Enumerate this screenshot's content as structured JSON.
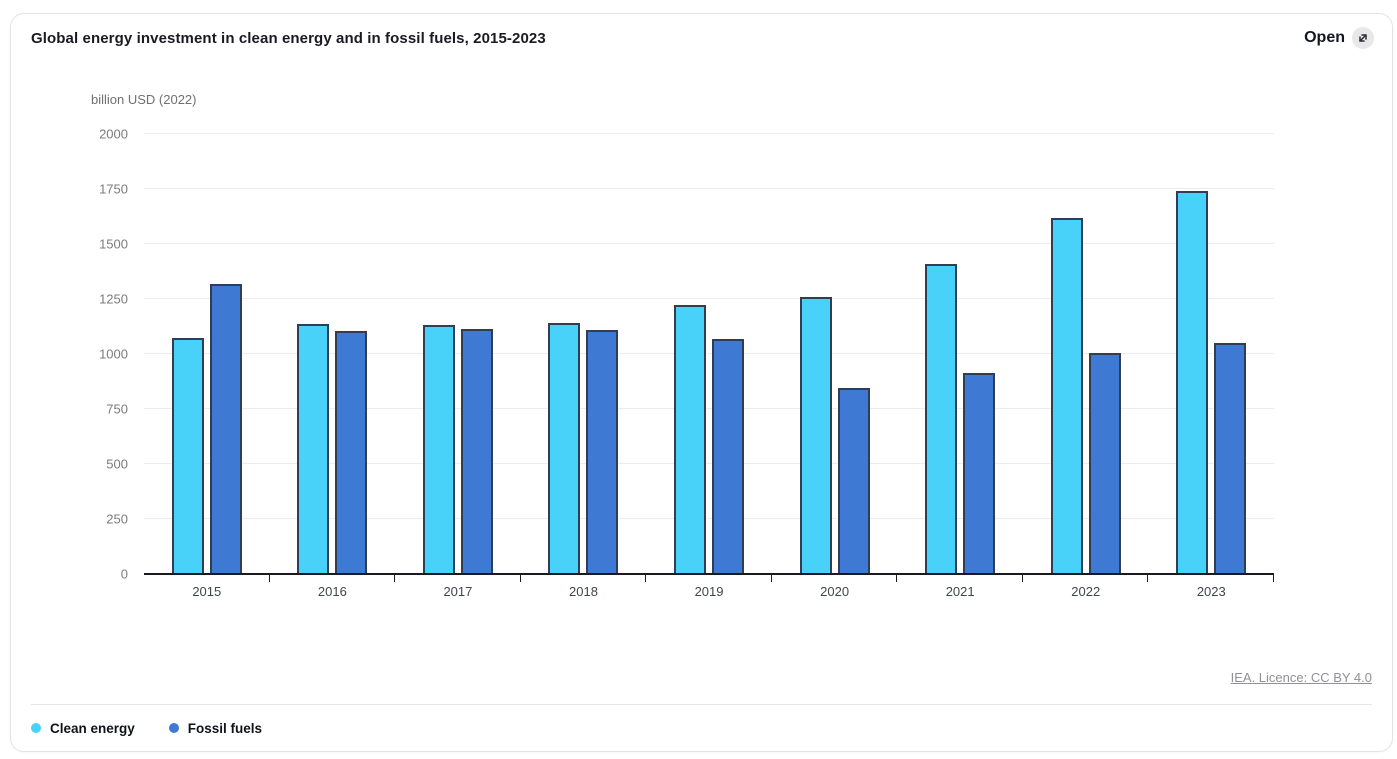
{
  "card": {
    "title": "Global energy investment in clean energy and in fossil fuels, 2015-2023",
    "open_button": {
      "label": "Open",
      "icon": "expand-diagonal-arrow-icon"
    },
    "source_link": "IEA. Licence: CC BY 4.0"
  },
  "chart_data": {
    "type": "bar",
    "title": "Global energy investment in clean energy and in fossil fuels, 2015-2023",
    "unit_label": "billion USD (2022)",
    "categories": [
      "2015",
      "2016",
      "2017",
      "2018",
      "2019",
      "2020",
      "2021",
      "2022",
      "2023"
    ],
    "series": [
      {
        "name": "Clean energy",
        "color": "#48d1f9",
        "values": [
          1075,
          1135,
          1130,
          1140,
          1225,
          1260,
          1410,
          1620,
          1740
        ]
      },
      {
        "name": "Fossil fuels",
        "color": "#3e79d4",
        "values": [
          1320,
          1105,
          1115,
          1110,
          1070,
          845,
          915,
          1005,
          1050
        ]
      }
    ],
    "xlabel": "",
    "ylabel": "billion USD (2022)",
    "ylim": [
      0,
      2000
    ],
    "ytick_step": 250,
    "yticks": [
      0,
      250,
      500,
      750,
      1000,
      1250,
      1500,
      1750,
      2000
    ],
    "grid": true,
    "bar_border_color": "#313d52",
    "legend_position": "bottom-left"
  }
}
